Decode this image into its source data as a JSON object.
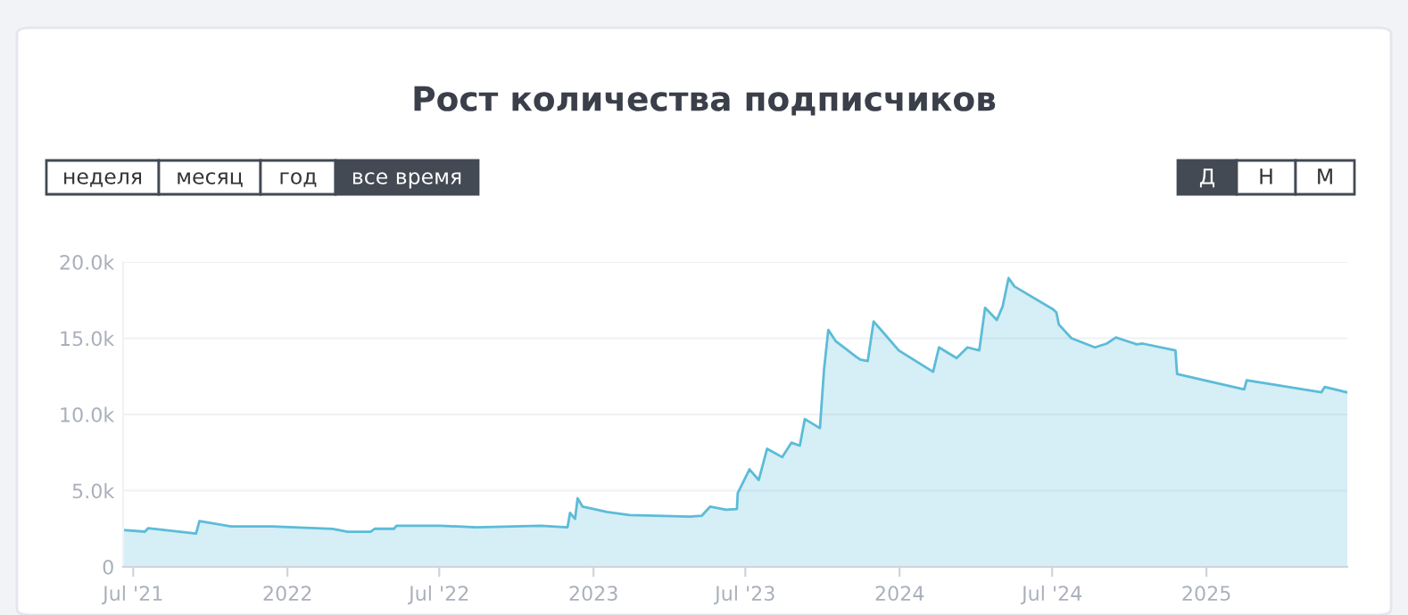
{
  "chart_data": {
    "type": "area",
    "title": "Рост количества подписчиков",
    "annotations": [
      "неделя",
      "месяц",
      "год",
      "все время",
      "Д",
      "Н",
      "М"
    ],
    "x": [
      "2021-06-19",
      "2021-07-15",
      "2021-07-19",
      "2021-09-14",
      "2021-09-18",
      "2021-10-26",
      "2021-12-14",
      "2022-02-24",
      "2022-03-14",
      "2022-04-10",
      "2022-04-15",
      "2022-05-08",
      "2022-05-11",
      "2022-07-02",
      "2022-08-14",
      "2022-10-30",
      "2022-12-01",
      "2022-12-04",
      "2022-12-10",
      "2022-12-13",
      "2022-12-19",
      "2023-01-17",
      "2023-02-13",
      "2023-04-26",
      "2023-05-10",
      "2023-05-20",
      "2023-06-08",
      "2023-06-21",
      "2023-06-22",
      "2023-07-06",
      "2023-07-17",
      "2023-07-27",
      "2023-08-14",
      "2023-08-25",
      "2023-09-04",
      "2023-09-10",
      "2023-09-28",
      "2023-10-03",
      "2023-10-08",
      "2023-10-17",
      "2023-11-10",
      "2023-11-15",
      "2023-11-24",
      "2023-12-01",
      "2023-12-13",
      "2023-12-31",
      "2024-02-10",
      "2024-02-17",
      "2024-03-09",
      "2024-03-22",
      "2024-04-05",
      "2024-04-12",
      "2024-04-26",
      "2024-05-03",
      "2024-05-10",
      "2024-05-17",
      "2024-07-02",
      "2024-07-06",
      "2024-07-09",
      "2024-07-24",
      "2024-08-21",
      "2024-09-04",
      "2024-09-15",
      "2024-10-10",
      "2024-10-17",
      "2024-11-25",
      "2024-11-27",
      "2025-02-15",
      "2025-02-18",
      "2025-05-18",
      "2025-05-22",
      "2025-06-18"
    ],
    "series": [
      {
        "color": "#5bbcd8",
        "values": [
          2420,
          2310,
          2540,
          2190,
          3000,
          2650,
          2650,
          2490,
          2300,
          2300,
          2500,
          2500,
          2700,
          2700,
          2600,
          2700,
          2600,
          3550,
          3150,
          4500,
          3950,
          3600,
          3400,
          3300,
          3350,
          3950,
          3750,
          3800,
          4850,
          6400,
          5700,
          7750,
          7200,
          8150,
          7950,
          9700,
          9100,
          13000,
          15550,
          14800,
          13800,
          13600,
          13500,
          16100,
          15350,
          14200,
          12800,
          14400,
          13700,
          14400,
          14200,
          17000,
          16200,
          17100,
          18950,
          18400,
          16900,
          16700,
          15900,
          15000,
          14400,
          14650,
          15050,
          14600,
          14650,
          14200,
          12650,
          11650,
          12250,
          11450,
          11800,
          11450
        ]
      }
    ],
    "xlim": [
      "2021-06-19",
      "2025-06-18"
    ],
    "xticks": [
      {
        "value": "2021-07-01",
        "label": "Jul '21"
      },
      {
        "value": "2022-01-01",
        "label": "2022"
      },
      {
        "value": "2022-07-01",
        "label": "Jul '22"
      },
      {
        "value": "2023-01-01",
        "label": "2023"
      },
      {
        "value": "2023-07-01",
        "label": "Jul '23"
      },
      {
        "value": "2024-01-01",
        "label": "2024"
      },
      {
        "value": "2024-07-01",
        "label": "Jul '24"
      },
      {
        "value": "2025-01-01",
        "label": "2025"
      }
    ],
    "ylim": [
      0,
      20000
    ],
    "yticks": [
      0,
      {
        "value": 5000,
        "label": "5.0k"
      },
      {
        "value": 10000,
        "label": "10.0k"
      },
      {
        "value": 15000,
        "label": "15.0k"
      },
      {
        "value": 20000,
        "label": "20.0k"
      }
    ],
    "grid": "y",
    "legend": false
  }
}
